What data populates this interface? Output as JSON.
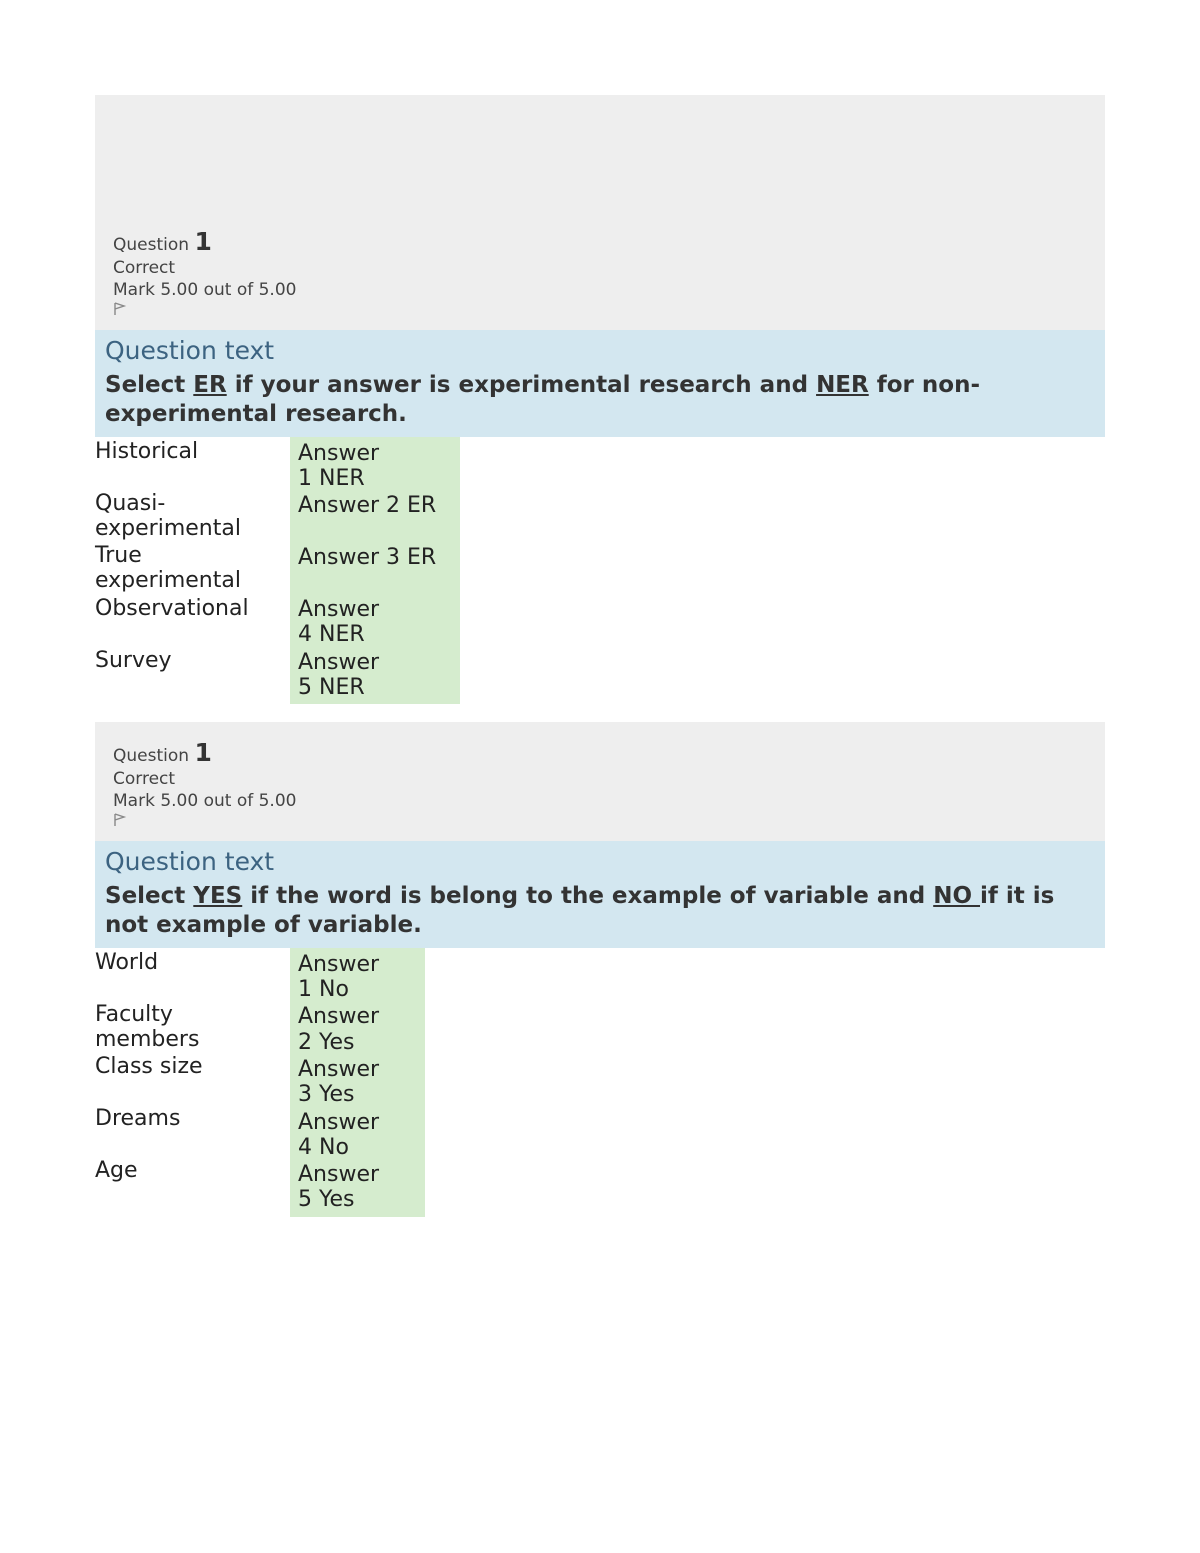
{
  "colors": {
    "header_bg": "#eeeeee",
    "qtext_bg": "#d3e7f0",
    "answer_bg": "#d5ecce",
    "heading_color": "#3c6381",
    "text_color": "#333333"
  },
  "questions": [
    {
      "meta": {
        "label": "Question",
        "number": "1",
        "status": "Correct",
        "mark": "Mark 5.00 out of 5.00"
      },
      "heading": "Question text",
      "prompt_parts": [
        "Select ",
        "ER",
        " if your answer is experimental research and ",
        "NER",
        " for non-experimental research."
      ],
      "answer_col_wide": true,
      "rows": [
        {
          "label": "Historical",
          "answer_prefix": "Answer 1",
          "answer_value": "NER",
          "two_line": true
        },
        {
          "label": "Quasi-experimental",
          "answer_prefix": "Answer 2",
          "answer_value": "ER",
          "two_line": false
        },
        {
          "label": "True experimental",
          "answer_prefix": "Answer 3",
          "answer_value": "ER",
          "two_line": false
        },
        {
          "label": "Observational",
          "answer_prefix": "Answer 4",
          "answer_value": "NER",
          "two_line": true
        },
        {
          "label": "Survey",
          "answer_prefix": "Answer 5",
          "answer_value": "NER",
          "two_line": true
        }
      ]
    },
    {
      "meta": {
        "label": "Question",
        "number": "1",
        "status": "Correct",
        "mark": "Mark 5.00 out of 5.00"
      },
      "heading": "Question text",
      "prompt_parts": [
        "Select ",
        "YES",
        " if the word is belong to the example of variable and ",
        "NO ",
        "if it is not example of variable."
      ],
      "answer_col_wide": false,
      "rows": [
        {
          "label": "World",
          "answer_prefix": "Answer 1",
          "answer_value": "No",
          "two_line": true
        },
        {
          "label": "Faculty members",
          "answer_prefix": "Answer 2",
          "answer_value": "Yes",
          "two_line": true
        },
        {
          "label": "Class size",
          "answer_prefix": "Answer 3",
          "answer_value": "Yes",
          "two_line": true
        },
        {
          "label": "Dreams",
          "answer_prefix": "Answer 4",
          "answer_value": "No",
          "two_line": true
        },
        {
          "label": "Age",
          "answer_prefix": "Answer 5",
          "answer_value": "Yes",
          "two_line": true
        }
      ]
    }
  ]
}
